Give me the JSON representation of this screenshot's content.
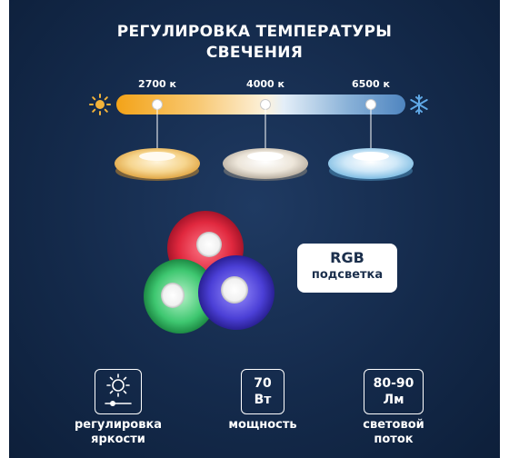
{
  "title": {
    "line1": "РЕГУЛИРОВКА ТЕМПЕРАТУРЫ",
    "line2": "СВЕЧЕНИЯ"
  },
  "temperature": {
    "points": [
      {
        "label": "2700 к",
        "value": 2700
      },
      {
        "label": "4000 к",
        "value": 4000
      },
      {
        "label": "6500 к",
        "value": 6500
      }
    ]
  },
  "icons": {
    "warm": "sun-icon",
    "cold": "snowflake-icon",
    "brightness": "brightness-slider-icon"
  },
  "rgb": {
    "title": "RGB",
    "subtitle": "подсветка"
  },
  "specs": [
    {
      "box_line1": "",
      "box_line2": "",
      "label_line1": "регулировка",
      "label_line2": "яркости"
    },
    {
      "box_line1": "70",
      "box_line2": "Вт",
      "label_line1": "мощность",
      "label_line2": ""
    },
    {
      "box_line1": "80-90",
      "box_line2": "Лм",
      "label_line1": "световой",
      "label_line2": "поток"
    }
  ],
  "colors": {
    "background": "#142a4b",
    "warm": "#f3a318",
    "cold": "#4f85c0",
    "text": "#ffffff",
    "badge_text": "#1b2f4c"
  }
}
